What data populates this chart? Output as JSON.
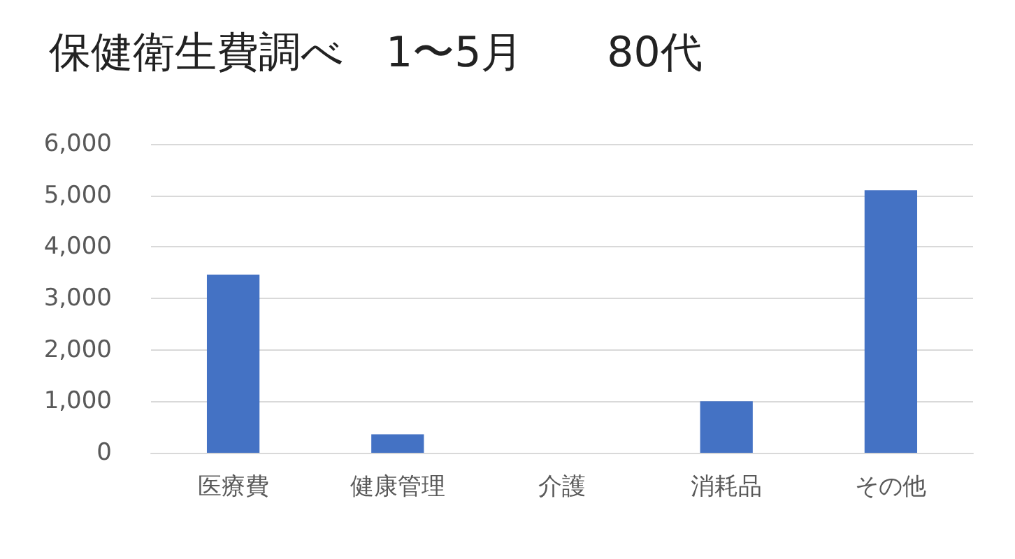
{
  "chart_data": {
    "type": "bar",
    "title": "保健衛生費調べ　1〜5月　　80代",
    "categories": [
      "医療費",
      "健康管理",
      "介護",
      "消耗品",
      "その他"
    ],
    "values": [
      3460,
      360,
      0,
      1000,
      5100
    ],
    "color": "#4472c4",
    "ylim": [
      0,
      6000
    ],
    "yticks": [
      0,
      {
        "value": 1000,
        "label": "1,000"
      },
      {
        "value": 2000,
        "label": "2,000"
      },
      {
        "value": 3000,
        "label": "3,000"
      },
      {
        "value": 4000,
        "label": "4,000"
      },
      {
        "value": 5000,
        "label": "5,000"
      },
      {
        "value": 6000,
        "label": "6,000"
      }
    ],
    "grid": "y"
  }
}
